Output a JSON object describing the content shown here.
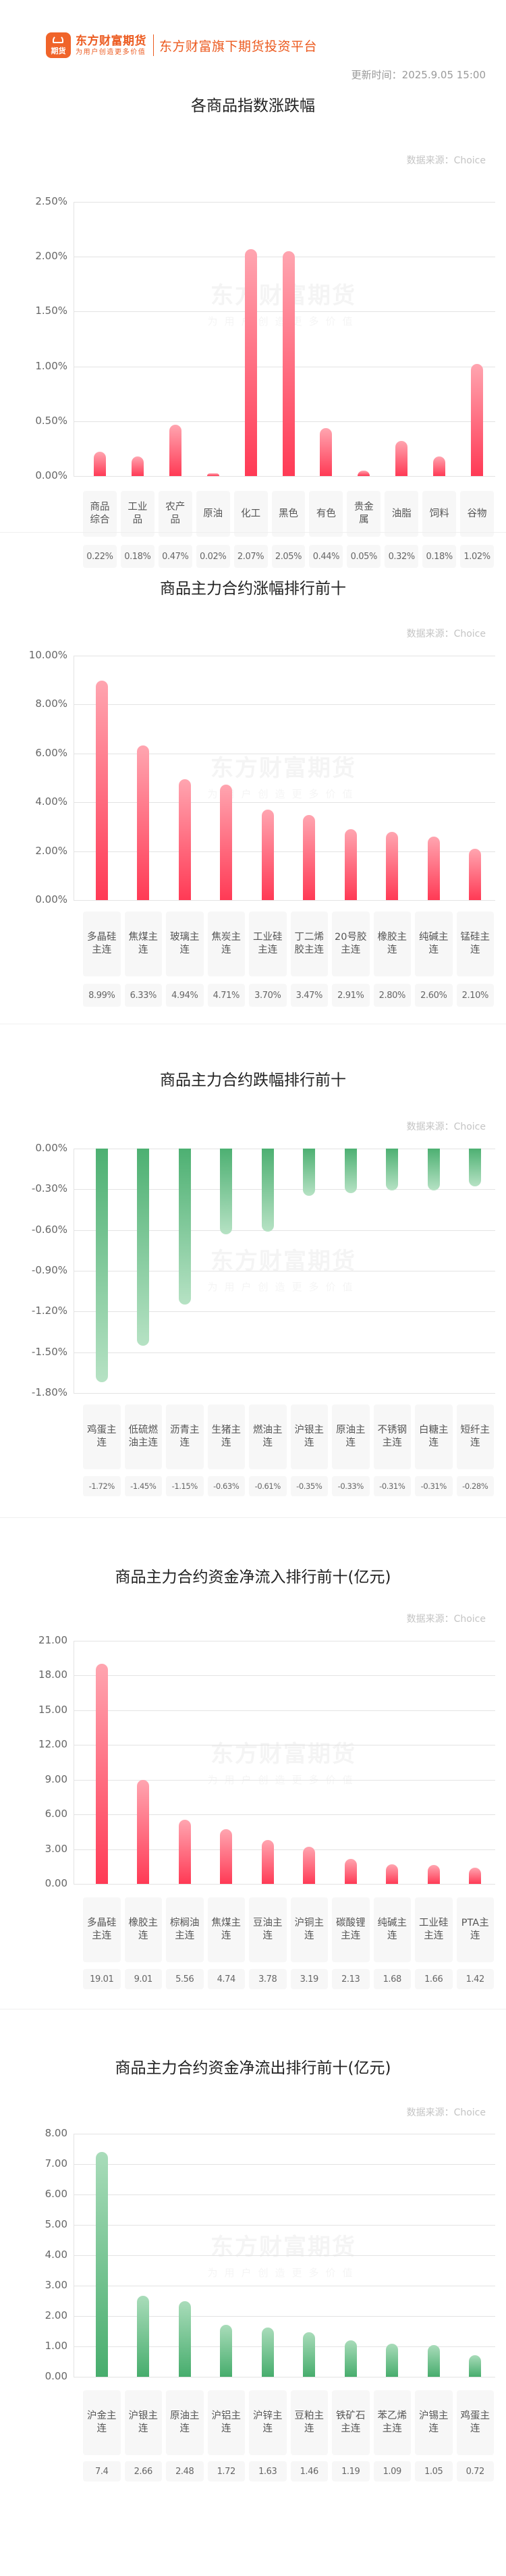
{
  "header": {
    "logo_glyph": "期货",
    "brand_name": "东方财富期货",
    "brand_slogan": "为用户创造更多价值",
    "tagline": "东方财富旗下期货投资平台",
    "update_time": "更新时间：2025.9.05 15:00"
  },
  "watermark": {
    "main": "东方财富期货",
    "sub": "为用户创造更多价值"
  },
  "colors": {
    "up": "#ff3a55",
    "down": "#47ad6d",
    "brand": "#ec5a1f"
  },
  "chart_data": [
    {
      "id": "index_change",
      "type": "bar",
      "title": "各商品指数涨跌幅",
      "source": "数据来源：Choice",
      "ylabel": "",
      "ylim": [
        0,
        2.5
      ],
      "yticks": [
        "2.50%",
        "2.00%",
        "1.50%",
        "1.00%",
        "0.50%",
        "0.00%"
      ],
      "grid": true,
      "categories": [
        "商品综合",
        "工业品",
        "农产品",
        "原油",
        "化工",
        "黑色",
        "有色",
        "贵金属",
        "油脂",
        "饲料",
        "谷物"
      ],
      "values": [
        0.22,
        0.18,
        0.47,
        0.02,
        2.07,
        2.05,
        0.44,
        0.05,
        0.32,
        0.18,
        1.02
      ],
      "value_labels": [
        "0.22%",
        "0.18%",
        "0.47%",
        "0.02%",
        "2.07%",
        "2.05%",
        "0.44%",
        "0.05%",
        "0.32%",
        "0.18%",
        "1.02%"
      ]
    },
    {
      "id": "top_gainers",
      "type": "bar",
      "title": "商品主力合约涨幅排行前十",
      "source": "数据来源：Choice",
      "ylim": [
        0,
        10
      ],
      "yticks": [
        "10.00%",
        "8.00%",
        "6.00%",
        "4.00%",
        "2.00%",
        "0.00%"
      ],
      "grid": true,
      "categories": [
        "多晶硅主连",
        "焦煤主连",
        "玻璃主连",
        "焦炭主连",
        "工业硅主连",
        "丁二烯胶主连",
        "20号胶主连",
        "橡胶主连",
        "纯碱主连",
        "锰硅主连"
      ],
      "values": [
        8.99,
        6.33,
        4.94,
        4.71,
        3.7,
        3.47,
        2.91,
        2.8,
        2.6,
        2.1
      ],
      "value_labels": [
        "8.99%",
        "6.33%",
        "4.94%",
        "4.71%",
        "3.70%",
        "3.47%",
        "2.91%",
        "2.80%",
        "2.60%",
        "2.10%"
      ]
    },
    {
      "id": "top_losers",
      "type": "bar",
      "title": "商品主力合约跌幅排行前十",
      "source": "数据来源：Choice",
      "ylim": [
        -1.8,
        0
      ],
      "yticks": [
        "0.00%",
        "-0.30%",
        "-0.60%",
        "-0.90%",
        "-1.20%",
        "-1.50%",
        "-1.80%"
      ],
      "grid": true,
      "categories": [
        "鸡蛋主连",
        "低硫燃油主连",
        "沥青主连",
        "生猪主连",
        "燃油主连",
        "沪银主连",
        "原油主连",
        "不锈钢主连",
        "白糖主连",
        "短纤主连"
      ],
      "values": [
        -1.72,
        -1.45,
        -1.15,
        -0.63,
        -0.61,
        -0.35,
        -0.33,
        -0.31,
        -0.31,
        -0.28
      ],
      "value_labels": [
        "-1.72%",
        "-1.45%",
        "-1.15%",
        "-0.63%",
        "-0.61%",
        "-0.35%",
        "-0.33%",
        "-0.31%",
        "-0.31%",
        "-0.28%"
      ]
    },
    {
      "id": "net_inflow",
      "type": "bar",
      "title": "商品主力合约资金净流入排行前十(亿元)",
      "source": "数据来源：Choice",
      "ylim": [
        0,
        21
      ],
      "yticks": [
        "21.00",
        "18.00",
        "15.00",
        "12.00",
        "9.00",
        "6.00",
        "3.00",
        "0.00"
      ],
      "grid": true,
      "categories": [
        "多晶硅主连",
        "橡胶主连",
        "棕榈油主连",
        "焦煤主连",
        "豆油主连",
        "沪铜主连",
        "碳酸锂主连",
        "纯碱主连",
        "工业硅主连",
        "PTA主连"
      ],
      "values": [
        19.01,
        9.01,
        5.56,
        4.74,
        3.78,
        3.19,
        2.13,
        1.68,
        1.66,
        1.42
      ],
      "value_labels": [
        "19.01",
        "9.01",
        "5.56",
        "4.74",
        "3.78",
        "3.19",
        "2.13",
        "1.68",
        "1.66",
        "1.42"
      ]
    },
    {
      "id": "net_outflow",
      "type": "bar",
      "title": "商品主力合约资金净流出排行前十(亿元)",
      "source": "数据来源：Choice",
      "ylim": [
        0,
        8
      ],
      "yticks": [
        "8.00",
        "7.00",
        "6.00",
        "5.00",
        "4.00",
        "3.00",
        "2.00",
        "1.00",
        "0.00"
      ],
      "grid": true,
      "categories": [
        "沪金主连",
        "沪银主连",
        "原油主连",
        "沪铝主连",
        "沪锌主连",
        "豆粕主连",
        "铁矿石主连",
        "苯乙烯主连",
        "沪锡主连",
        "鸡蛋主连"
      ],
      "values": [
        7.4,
        2.66,
        2.48,
        1.72,
        1.63,
        1.46,
        1.19,
        1.09,
        1.05,
        0.72
      ],
      "value_labels": [
        "7.4",
        "2.66",
        "2.48",
        "1.72",
        "1.63",
        "1.46",
        "1.19",
        "1.09",
        "1.05",
        "0.72"
      ]
    }
  ]
}
